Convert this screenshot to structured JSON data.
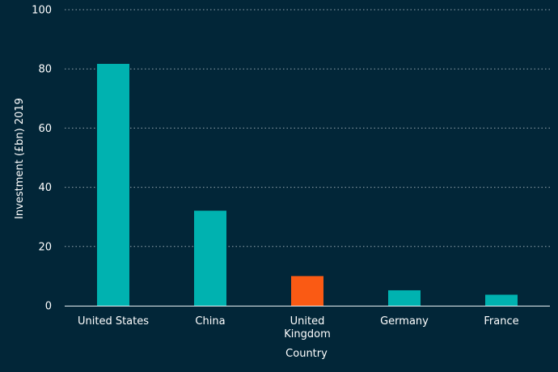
{
  "chart_data": {
    "type": "bar",
    "title": "",
    "xlabel": "Country",
    "ylabel": "Investment (£bn) 2019",
    "categories": [
      "United States",
      "China",
      "United Kingdom",
      "Germany",
      "France"
    ],
    "category_lines": [
      [
        "United States"
      ],
      [
        "China"
      ],
      [
        "United",
        "Kingdom"
      ],
      [
        "Germany"
      ],
      [
        "France"
      ]
    ],
    "values": [
      81.7,
      32.1,
      10.0,
      5.2,
      3.7
    ],
    "ylim": [
      0,
      100
    ],
    "yticks": [
      0,
      20,
      40,
      60,
      80,
      100
    ],
    "grid": true,
    "legend": "none",
    "colors": {
      "background": "#022638",
      "bar_default": "#00b2b0",
      "bar_highlight": "#fa5a14"
    },
    "highlight_category": "United Kingdom"
  }
}
